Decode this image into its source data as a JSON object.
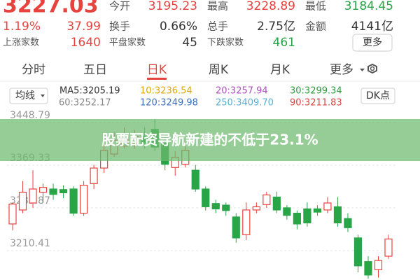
{
  "header": {
    "price": "3227.03",
    "change_pct": "1.19%",
    "change": "37.99",
    "stats": [
      {
        "label": "今开",
        "value": "3195.23"
      },
      {
        "label": "最高",
        "value": "3228.89"
      },
      {
        "label": "最低",
        "value": "3184.45"
      },
      {
        "label": "换手",
        "value": "0.66%"
      },
      {
        "label": "总手",
        "value": "2.75亿"
      },
      {
        "label": "金额",
        "value": "4141亿"
      }
    ],
    "breadth": [
      {
        "label": "上涨家数",
        "value": "1640"
      },
      {
        "label": "平盘家数",
        "value": "45"
      },
      {
        "label": "下跌家数",
        "value": "461"
      }
    ],
    "more_button": "更多"
  },
  "tabs": [
    "分时",
    "五日",
    "日K",
    "周K",
    "月K",
    "更多"
  ],
  "active_tab": 2,
  "ma_selector": "均线",
  "dk_button": "DK点",
  "ma_labels": [
    {
      "text": "MA5:3205.19",
      "color": "#333333"
    },
    {
      "text": "10:3236.54",
      "color": "#e0a800"
    },
    {
      "text": "20:3257.94",
      "color": "#b04fc0"
    },
    {
      "text": "30:3299.34",
      "color": "#2f9a3e"
    },
    {
      "text": "60:3252.17",
      "color": "#888888"
    },
    {
      "text": "120:3249.98",
      "color": "#3a6fc0"
    },
    {
      "text": "250:3409.70",
      "color": "#5ab0d8"
    },
    {
      "text": "90:3211.83",
      "color": "#d9453f"
    }
  ],
  "chart": {
    "ylim": [
      3155.7,
      3468.3
    ],
    "yticks": [
      3448.79,
      3369.33,
      3289.87,
      3210.41
    ],
    "candles": [
      {
        "open": 3260,
        "close": 3297,
        "high": 3300,
        "low": 3248
      },
      {
        "open": 3286,
        "close": 3319,
        "high": 3340,
        "low": 3280
      },
      {
        "open": 3299,
        "close": 3325,
        "high": 3360,
        "low": 3290
      },
      {
        "open": 3319,
        "close": 3328,
        "high": 3335,
        "low": 3300
      },
      {
        "open": 3325,
        "close": 3315,
        "high": 3335,
        "low": 3305
      },
      {
        "open": 3324,
        "close": 3318,
        "high": 3332,
        "low": 3308
      },
      {
        "open": 3325,
        "close": 3280,
        "high": 3330,
        "low": 3275
      },
      {
        "open": 3280,
        "close": 3332,
        "high": 3340,
        "low": 3275
      },
      {
        "open": 3335,
        "close": 3364,
        "high": 3370,
        "low": 3325
      },
      {
        "open": 3364,
        "close": 3397,
        "high": 3410,
        "low": 3355
      },
      {
        "open": 3390,
        "close": 3416,
        "high": 3430,
        "low": 3385
      },
      {
        "open": 3405,
        "close": 3419,
        "high": 3440,
        "low": 3400
      },
      {
        "open": 3410,
        "close": 3423,
        "high": 3435,
        "low": 3400
      },
      {
        "open": 3423,
        "close": 3410,
        "high": 3440,
        "low": 3400
      },
      {
        "open": 3436,
        "close": 3403,
        "high": 3455,
        "low": 3395
      },
      {
        "open": 3410,
        "close": 3371,
        "high": 3420,
        "low": 3360
      },
      {
        "open": 3365,
        "close": 3384,
        "high": 3395,
        "low": 3350
      },
      {
        "open": 3371,
        "close": 3397,
        "high": 3405,
        "low": 3365
      },
      {
        "open": 3360,
        "close": 3325,
        "high": 3370,
        "low": 3320
      },
      {
        "open": 3325,
        "close": 3292,
        "high": 3330,
        "low": 3285
      },
      {
        "open": 3298,
        "close": 3288,
        "high": 3305,
        "low": 3280
      },
      {
        "open": 3295,
        "close": 3285,
        "high": 3300,
        "low": 3275
      },
      {
        "open": 3273,
        "close": 3234,
        "high": 3280,
        "low": 3225
      },
      {
        "open": 3240,
        "close": 3286,
        "high": 3300,
        "low": 3230
      },
      {
        "open": 3286,
        "close": 3292,
        "high": 3300,
        "low": 3280
      },
      {
        "open": 3296,
        "close": 3314,
        "high": 3320,
        "low": 3290
      },
      {
        "open": 3310,
        "close": 3286,
        "high": 3320,
        "low": 3280
      },
      {
        "open": 3290,
        "close": 3276,
        "high": 3295,
        "low": 3268
      },
      {
        "open": 3280,
        "close": 3260,
        "high": 3285,
        "low": 3250
      },
      {
        "open": 3288,
        "close": 3262,
        "high": 3300,
        "low": 3255
      },
      {
        "open": 3288,
        "close": 3282,
        "high": 3295,
        "low": 3275
      },
      {
        "open": 3286,
        "close": 3299,
        "high": 3310,
        "low": 3280
      },
      {
        "open": 3292,
        "close": 3262,
        "high": 3310,
        "low": 3255
      },
      {
        "open": 3270,
        "close": 3253,
        "high": 3280,
        "low": 3245
      },
      {
        "open": 3234,
        "close": 3182,
        "high": 3240,
        "low": 3170
      },
      {
        "open": 3190,
        "close": 3165,
        "high": 3200,
        "low": 3158
      },
      {
        "open": 3175,
        "close": 3192,
        "high": 3200,
        "low": 3160
      },
      {
        "open": 3200,
        "close": 3232,
        "high": 3240,
        "low": 3195
      }
    ],
    "up_color": "#e8423f",
    "down_color": "#27a547"
  },
  "banner": "股票配资导航新建的不低于23.1%"
}
